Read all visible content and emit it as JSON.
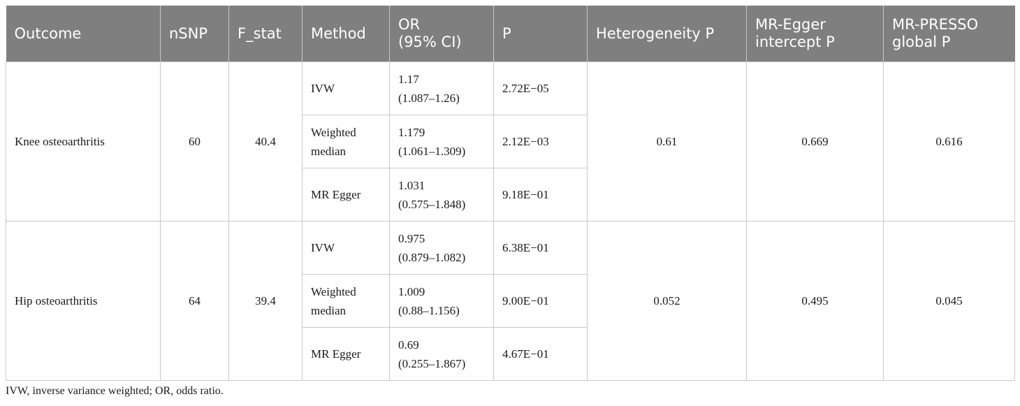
{
  "table": {
    "headers": [
      "Outcome",
      "nSNP",
      "F_stat",
      "Method",
      "OR\n(95% CI)",
      "P",
      "Heterogeneity P",
      "MR-Egger\nintercept P",
      "MR-PRESSO\nglobal P"
    ],
    "groups": [
      {
        "outcome": "Knee osteoarthritis",
        "nsnp": "60",
        "fstat": "40.4",
        "heterogeneity_p": "0.61",
        "egger_intercept_p": "0.669",
        "presso_global_p": "0.616",
        "rows": [
          {
            "method": "IVW",
            "or": "1.17\n(1.087–1.26)",
            "p": "2.72E−05"
          },
          {
            "method": "Weighted\nmedian",
            "or": "1.179\n(1.061–1.309)",
            "p": "2.12E−03"
          },
          {
            "method": "MR Egger",
            "or": "1.031\n(0.575–1.848)",
            "p": "9.18E−01"
          }
        ]
      },
      {
        "outcome": "Hip osteoarthritis",
        "nsnp": "64",
        "fstat": "39.4",
        "heterogeneity_p": "0.052",
        "egger_intercept_p": "0.495",
        "presso_global_p": "0.045",
        "rows": [
          {
            "method": "IVW",
            "or": "0.975\n(0.879–1.082)",
            "p": "6.38E−01"
          },
          {
            "method": "Weighted\nmedian",
            "or": "1.009\n(0.88–1.156)",
            "p": "9.00E−01"
          },
          {
            "method": "MR Egger",
            "or": "0.69\n(0.255–1.867)",
            "p": "4.67E−01"
          }
        ]
      }
    ]
  },
  "footnote": "IVW, inverse variance weighted; OR, odds ratio."
}
